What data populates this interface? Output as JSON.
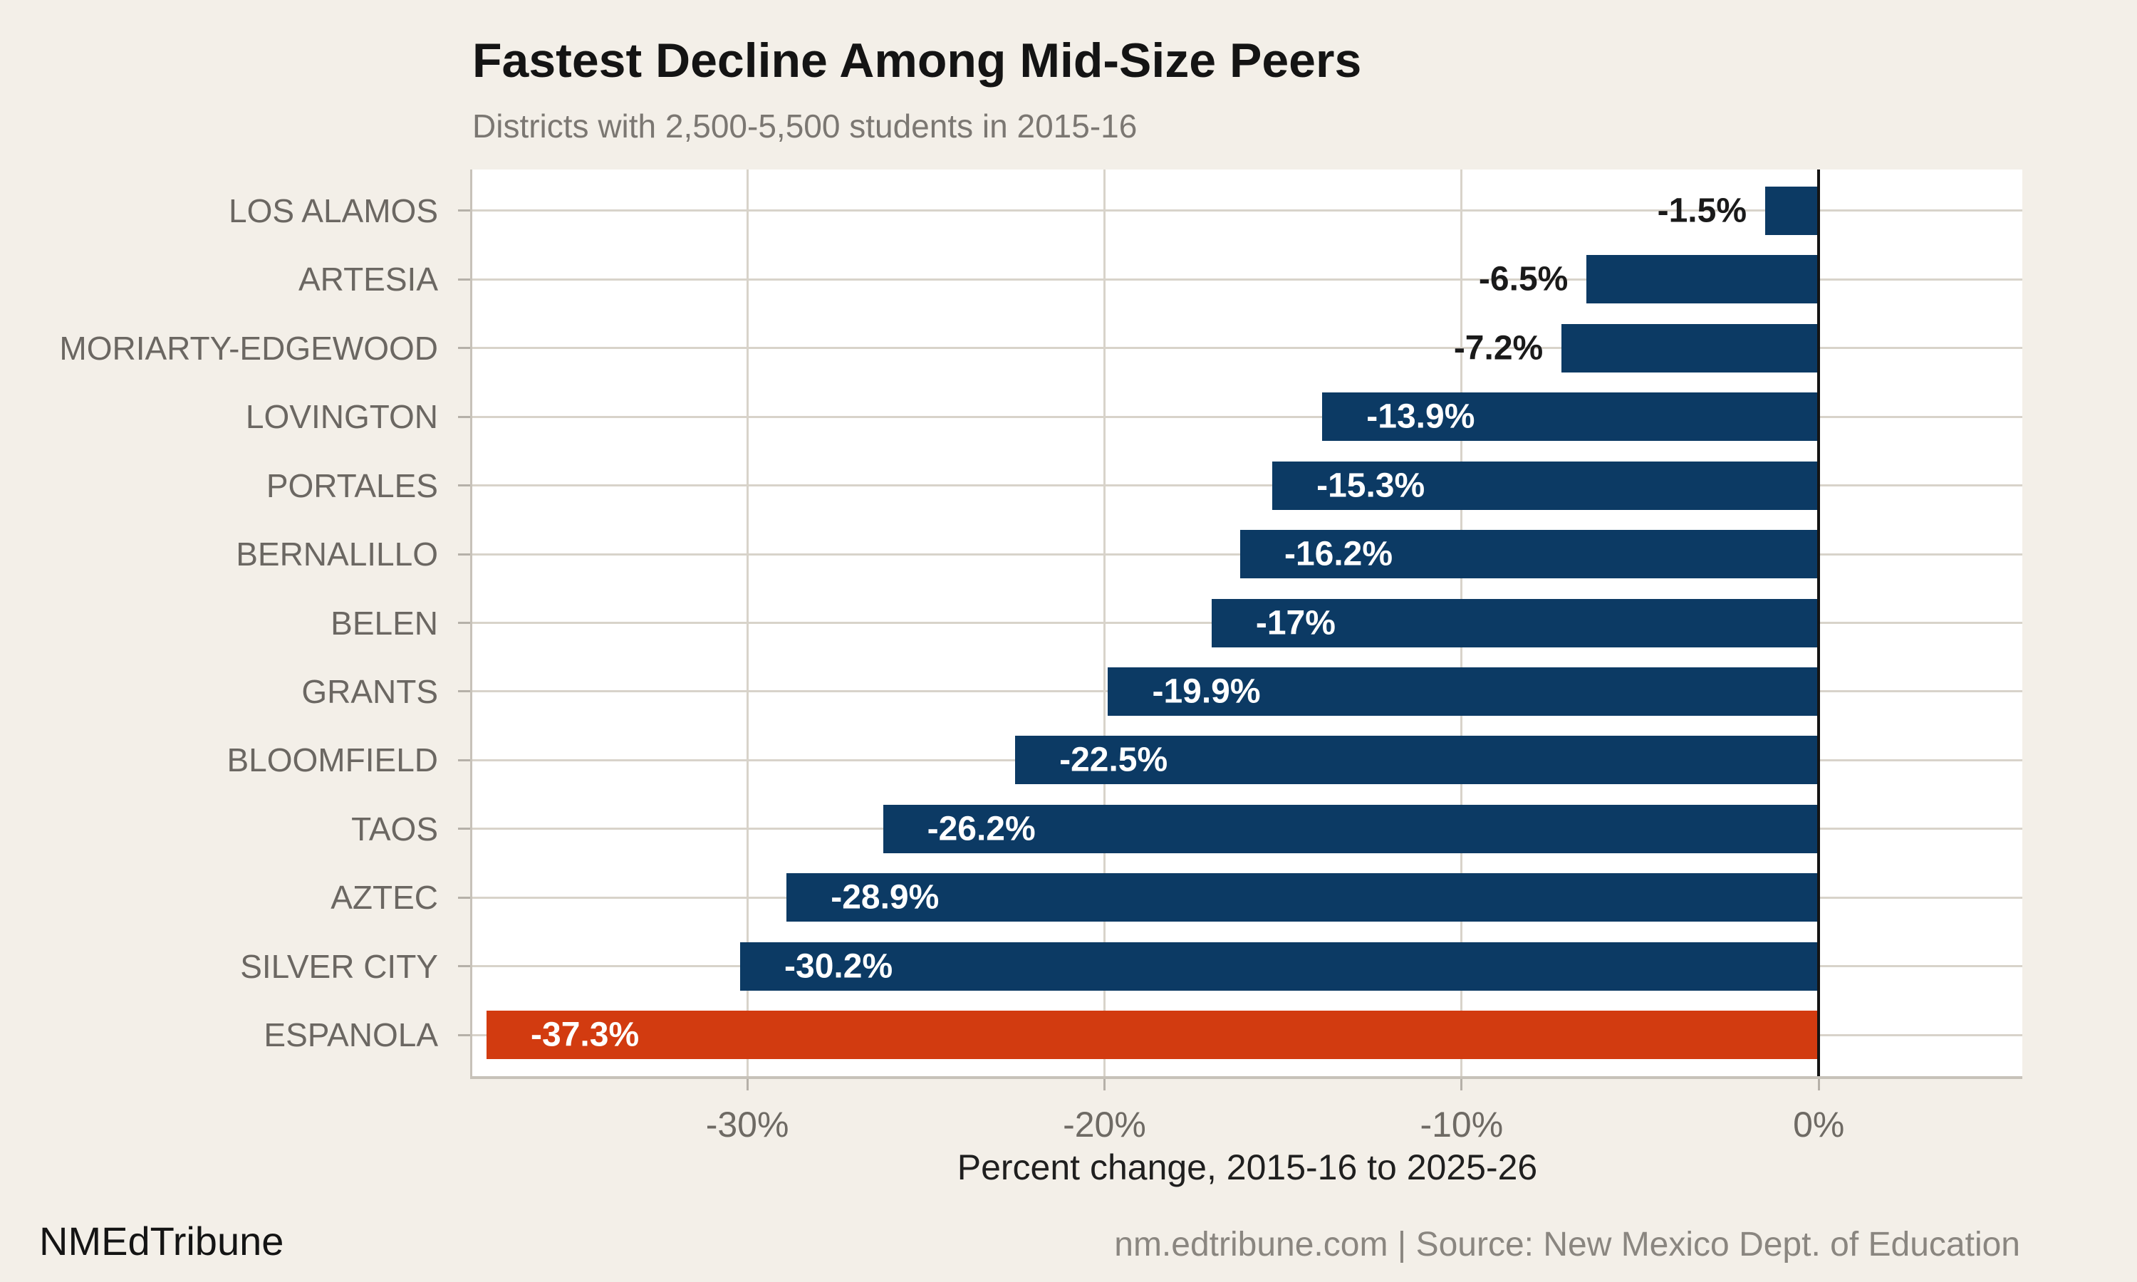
{
  "title": "Fastest Decline Among Mid-Size Peers",
  "subtitle": "Districts with 2,500-5,500 students in 2015-16",
  "footer": {
    "brand": "NMEdTribune",
    "credit": "nm.edtribune.com | Source: New Mexico Dept. of Education"
  },
  "chart_data": {
    "type": "bar",
    "orientation": "horizontal",
    "title": "Fastest Decline Among Mid-Size Peers",
    "subtitle": "Districts with 2,500-5,500 students in 2015-16",
    "xlabel": "Percent change, 2015-16 to 2025-26",
    "ylabel": "",
    "categories": [
      "LOS ALAMOS",
      "ARTESIA",
      "MORIARTY-EDGEWOOD",
      "LOVINGTON",
      "PORTALES",
      "BERNALILLO",
      "BELEN",
      "GRANTS",
      "BLOOMFIELD",
      "TAOS",
      "AZTEC",
      "SILVER CITY",
      "ESPANOLA"
    ],
    "values": [
      -1.5,
      -6.5,
      -7.2,
      -13.9,
      -15.3,
      -16.2,
      -17,
      -19.9,
      -22.5,
      -26.2,
      -28.9,
      -30.2,
      -37.3
    ],
    "labels": [
      "-1.5%",
      "-6.5%",
      "-7.2%",
      "-13.9%",
      "-15.3%",
      "-16.2%",
      "-17%",
      "-19.9%",
      "-22.5%",
      "-26.2%",
      "-28.9%",
      "-30.2%",
      "-37.3%"
    ],
    "highlight_category": "ESPANOLA",
    "xlim": [
      -37.7,
      5.7
    ],
    "xticks": [
      {
        "value": -30,
        "label": "-30%"
      },
      {
        "value": -20,
        "label": "-20%"
      },
      {
        "value": -10,
        "label": "-10%"
      },
      {
        "value": 0,
        "label": "0%"
      }
    ],
    "grid": true,
    "legend": "none",
    "label_inside_threshold": -10
  },
  "colors": {
    "background": "#f3efe8",
    "panel": "#ffffff",
    "bar": "#0c3a64",
    "highlight": "#d23b10",
    "grid": "#d8d3ca",
    "axis_line": "#c7c2b9",
    "zero_line": "#141414",
    "tick": "#b5b0a8",
    "label_text": "#6b6762",
    "tick_text": "#6e6a64",
    "title_text": "#141414",
    "subtitle_text": "#7b7772",
    "axis_title_text": "#1f1f1f",
    "value_in": "#ffffff",
    "value_out": "#1a1a1a",
    "brand_text": "#141414",
    "credit_text": "#8a8680"
  }
}
